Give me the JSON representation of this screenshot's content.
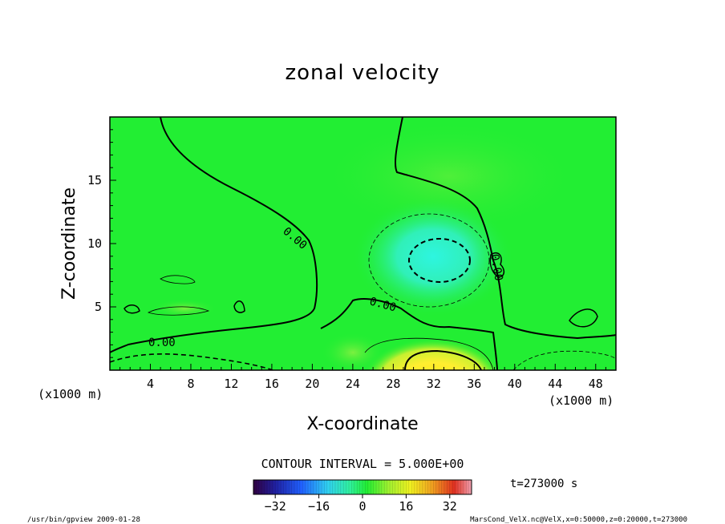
{
  "chart_data": {
    "type": "heatmap",
    "title": "zonal velocity",
    "xlabel": "X-coordinate",
    "ylabel": "Z-coordinate",
    "x_unit_label": "(x1000 m)",
    "y_unit_label": "(x1000 m)",
    "xlim": [
      0,
      50
    ],
    "ylim": [
      0,
      20
    ],
    "x_ticks": [
      "4",
      "8",
      "12",
      "16",
      "20",
      "24",
      "28",
      "32",
      "36",
      "40",
      "44",
      "48"
    ],
    "y_ticks": [
      "5",
      "10",
      "15"
    ],
    "contour_interval_label": "CONTOUR INTERVAL = 5.000E+00",
    "zero_contour_label": "0.00",
    "colorbar": {
      "range": [
        -40,
        40
      ],
      "ticks": [
        "-32",
        "-16",
        "0",
        "16",
        "32"
      ]
    },
    "features": [
      {
        "name": "negative core",
        "x": 32,
        "z": 8.5,
        "value": -10
      },
      {
        "name": "positive jet",
        "x": 33,
        "z": 0.8,
        "value": 12
      },
      {
        "name": "near-surface negative",
        "x": 6,
        "z": 0.5,
        "value": -10
      }
    ],
    "time_label": "t=273000 s",
    "grid": false
  },
  "footer": {
    "left": "/usr/bin/gpview  2009-01-28",
    "right": "MarsCond_VelX.nc@VelX,x=0:50000,z=0:20000,t=273000"
  },
  "colors": {
    "background_field": "#22ee33",
    "negative_core": "#30f0c0",
    "positive_jet": "#f0e020"
  }
}
